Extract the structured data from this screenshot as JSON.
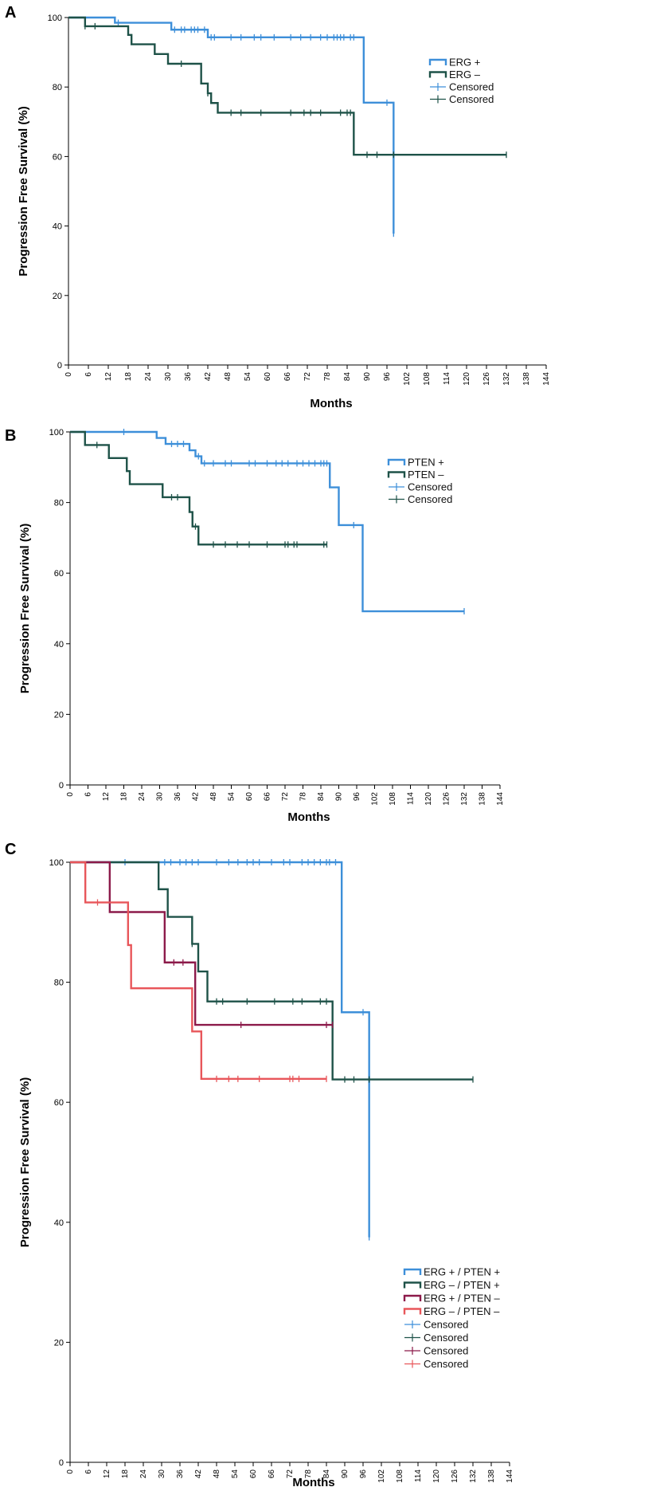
{
  "chart_data": [
    {
      "panel": "A",
      "type": "line",
      "xlabel": "Months",
      "ylabel": "Progression Free Survival (%)",
      "xlim": [
        0,
        144
      ],
      "ylim": [
        0,
        100
      ],
      "xticks": [
        0,
        6,
        12,
        18,
        24,
        30,
        36,
        42,
        48,
        54,
        60,
        66,
        72,
        78,
        84,
        90,
        96,
        102,
        108,
        114,
        120,
        126,
        132,
        138,
        144
      ],
      "yticks": [
        0,
        20,
        40,
        60,
        80,
        100
      ],
      "legend": [
        "ERG +",
        "ERG –",
        "Censored",
        "Censored"
      ],
      "series": [
        {
          "name": "ERG +",
          "color": "#3d8fd9",
          "steps": [
            [
              0,
              100
            ],
            [
              14,
              98.5
            ],
            [
              31,
              96.5
            ],
            [
              42,
              94.3
            ],
            [
              89,
              75.5
            ],
            [
              98,
              37.8
            ]
          ],
          "end_x": 98,
          "censored": [
            [
              15,
              98.5
            ],
            [
              32,
              96.5
            ],
            [
              34,
              96.5
            ],
            [
              35,
              96.5
            ],
            [
              37,
              96.5
            ],
            [
              38,
              96.5
            ],
            [
              39,
              96.5
            ],
            [
              41,
              96.5
            ],
            [
              43,
              94.3
            ],
            [
              44,
              94.3
            ],
            [
              49,
              94.3
            ],
            [
              52,
              94.3
            ],
            [
              56,
              94.3
            ],
            [
              58,
              94.3
            ],
            [
              62,
              94.3
            ],
            [
              67,
              94.3
            ],
            [
              70,
              94.3
            ],
            [
              73,
              94.3
            ],
            [
              76,
              94.3
            ],
            [
              78,
              94.3
            ],
            [
              80,
              94.3
            ],
            [
              81,
              94.3
            ],
            [
              82,
              94.3
            ],
            [
              83,
              94.3
            ],
            [
              85,
              94.3
            ],
            [
              86,
              94.3
            ],
            [
              96,
              75.5
            ],
            [
              98,
              37.8
            ]
          ]
        },
        {
          "name": "ERG –",
          "color": "#1e5248",
          "steps": [
            [
              0,
              100
            ],
            [
              5,
              97.5
            ],
            [
              18,
              95
            ],
            [
              19,
              92.3
            ],
            [
              26,
              89.5
            ],
            [
              30,
              86.7
            ],
            [
              40,
              81
            ],
            [
              42,
              78.2
            ],
            [
              43,
              75.4
            ],
            [
              45,
              72.6
            ],
            [
              86,
              60.5
            ]
          ],
          "end_x": 132,
          "censored": [
            [
              5,
              97.5
            ],
            [
              8,
              97.5
            ],
            [
              34,
              86.7
            ],
            [
              42,
              78.2
            ],
            [
              49,
              72.6
            ],
            [
              52,
              72.6
            ],
            [
              58,
              72.6
            ],
            [
              67,
              72.6
            ],
            [
              71,
              72.6
            ],
            [
              73,
              72.6
            ],
            [
              76,
              72.6
            ],
            [
              82,
              72.6
            ],
            [
              84,
              72.6
            ],
            [
              85,
              72.6
            ],
            [
              90,
              60.5
            ],
            [
              93,
              60.5
            ],
            [
              98,
              60.5
            ],
            [
              132,
              60.5
            ]
          ]
        }
      ]
    },
    {
      "panel": "B",
      "type": "line",
      "xlabel": "Months",
      "ylabel": "Progression Free Survival (%)",
      "xlim": [
        0,
        144
      ],
      "ylim": [
        0,
        100
      ],
      "xticks": [
        0,
        6,
        12,
        18,
        24,
        30,
        36,
        42,
        48,
        54,
        60,
        66,
        72,
        78,
        84,
        90,
        96,
        102,
        108,
        114,
        120,
        126,
        132,
        138,
        144
      ],
      "yticks": [
        0,
        20,
        40,
        60,
        80,
        100
      ],
      "legend": [
        "PTEN +",
        "PTEN –",
        "Censored",
        "Censored"
      ],
      "series": [
        {
          "name": "PTEN +",
          "color": "#3d8fd9",
          "steps": [
            [
              0,
              100
            ],
            [
              29,
              98.3
            ],
            [
              32,
              96.6
            ],
            [
              40,
              94.8
            ],
            [
              42,
              93.1
            ],
            [
              44,
              91.1
            ],
            [
              87,
              84.3
            ],
            [
              90,
              73.6
            ],
            [
              98,
              49.2
            ]
          ],
          "end_x": 132,
          "censored": [
            [
              18,
              100
            ],
            [
              34,
              96.6
            ],
            [
              36,
              96.6
            ],
            [
              38,
              96.6
            ],
            [
              43,
              93.1
            ],
            [
              45,
              91.1
            ],
            [
              48,
              91.1
            ],
            [
              52,
              91.1
            ],
            [
              54,
              91.1
            ],
            [
              60,
              91.1
            ],
            [
              62,
              91.1
            ],
            [
              66,
              91.1
            ],
            [
              69,
              91.1
            ],
            [
              71,
              91.1
            ],
            [
              73,
              91.1
            ],
            [
              76,
              91.1
            ],
            [
              78,
              91.1
            ],
            [
              80,
              91.1
            ],
            [
              82,
              91.1
            ],
            [
              84,
              91.1
            ],
            [
              85,
              91.1
            ],
            [
              86,
              91.1
            ],
            [
              95,
              73.6
            ],
            [
              132,
              49.2
            ]
          ]
        },
        {
          "name": "PTEN –",
          "color": "#1e5248",
          "steps": [
            [
              0,
              100
            ],
            [
              5,
              96.3
            ],
            [
              13,
              92.6
            ],
            [
              19,
              88.9
            ],
            [
              20,
              85.2
            ],
            [
              31,
              81.5
            ],
            [
              40,
              77.3
            ],
            [
              41,
              73.2
            ],
            [
              43,
              68.1
            ]
          ],
          "end_x": 86,
          "censored": [
            [
              9,
              96.3
            ],
            [
              34,
              81.5
            ],
            [
              36,
              81.5
            ],
            [
              42,
              73.2
            ],
            [
              48,
              68.1
            ],
            [
              52,
              68.1
            ],
            [
              56,
              68.1
            ],
            [
              60,
              68.1
            ],
            [
              66,
              68.1
            ],
            [
              72,
              68.1
            ],
            [
              73,
              68.1
            ],
            [
              75,
              68.1
            ],
            [
              76,
              68.1
            ],
            [
              85,
              68.1
            ],
            [
              86,
              68.1
            ]
          ]
        }
      ]
    },
    {
      "panel": "C",
      "type": "line",
      "xlabel": "Months",
      "ylabel": "Progression Free Survival (%)",
      "xlim": [
        0,
        144
      ],
      "ylim": [
        0,
        100
      ],
      "xticks": [
        0,
        6,
        12,
        18,
        24,
        30,
        36,
        42,
        48,
        54,
        60,
        66,
        72,
        78,
        84,
        90,
        96,
        102,
        108,
        114,
        120,
        126,
        132,
        138,
        144
      ],
      "yticks": [
        0,
        20,
        40,
        60,
        80,
        100
      ],
      "legend": [
        "ERG + / PTEN +",
        "ERG – / PTEN +",
        "ERG + / PTEN –",
        "ERG – / PTEN –",
        "Censored",
        "Censored",
        "Censored",
        "Censored"
      ],
      "series": [
        {
          "name": "ERG + / PTEN +",
          "color": "#3d8fd9",
          "steps": [
            [
              0,
              100
            ],
            [
              89,
              75
            ],
            [
              98,
              37.5
            ]
          ],
          "end_x": 98,
          "censored": [
            [
              18,
              100
            ],
            [
              31,
              100
            ],
            [
              33,
              100
            ],
            [
              36,
              100
            ],
            [
              38,
              100
            ],
            [
              40,
              100
            ],
            [
              42,
              100
            ],
            [
              48,
              100
            ],
            [
              52,
              100
            ],
            [
              55,
              100
            ],
            [
              58,
              100
            ],
            [
              60,
              100
            ],
            [
              62,
              100
            ],
            [
              66,
              100
            ],
            [
              70,
              100
            ],
            [
              72,
              100
            ],
            [
              76,
              100
            ],
            [
              78,
              100
            ],
            [
              80,
              100
            ],
            [
              82,
              100
            ],
            [
              84,
              100
            ],
            [
              85,
              100
            ],
            [
              87,
              100
            ],
            [
              96,
              75
            ],
            [
              98,
              37.5
            ]
          ]
        },
        {
          "name": "ERG – / PTEN +",
          "color": "#1e5248",
          "steps": [
            [
              0,
              100
            ],
            [
              29,
              95.5
            ],
            [
              32,
              90.9
            ],
            [
              40,
              86.4
            ],
            [
              42,
              81.8
            ],
            [
              45,
              76.8
            ],
            [
              86,
              63.8
            ]
          ],
          "end_x": 132,
          "censored": [
            [
              40,
              86.4
            ],
            [
              48,
              76.8
            ],
            [
              50,
              76.8
            ],
            [
              58,
              76.8
            ],
            [
              67,
              76.8
            ],
            [
              73,
              76.8
            ],
            [
              76,
              76.8
            ],
            [
              82,
              76.8
            ],
            [
              84,
              76.8
            ],
            [
              90,
              63.8
            ],
            [
              93,
              63.8
            ],
            [
              98,
              63.8
            ],
            [
              132,
              63.8
            ]
          ]
        },
        {
          "name": "ERG + / PTEN –",
          "color": "#8c1a4a",
          "steps": [
            [
              0,
              100
            ],
            [
              13,
              91.7
            ],
            [
              31,
              83.3
            ],
            [
              41,
              72.9
            ]
          ],
          "end_x": 86,
          "censored": [
            [
              34,
              83.3
            ],
            [
              37,
              83.3
            ],
            [
              56,
              72.9
            ],
            [
              84,
              72.9
            ],
            [
              86,
              72.9
            ]
          ]
        },
        {
          "name": "ERG – / PTEN –",
          "color": "#e8565a",
          "steps": [
            [
              0,
              100
            ],
            [
              5,
              93.3
            ],
            [
              19,
              86.2
            ],
            [
              20,
              79
            ],
            [
              40,
              71.8
            ],
            [
              43,
              63.9
            ]
          ],
          "end_x": 84,
          "censored": [
            [
              9,
              93.3
            ],
            [
              48,
              63.9
            ],
            [
              52,
              63.9
            ],
            [
              55,
              63.9
            ],
            [
              62,
              63.9
            ],
            [
              72,
              63.9
            ],
            [
              73,
              63.9
            ],
            [
              75,
              63.9
            ],
            [
              84,
              63.9
            ]
          ]
        }
      ]
    }
  ]
}
